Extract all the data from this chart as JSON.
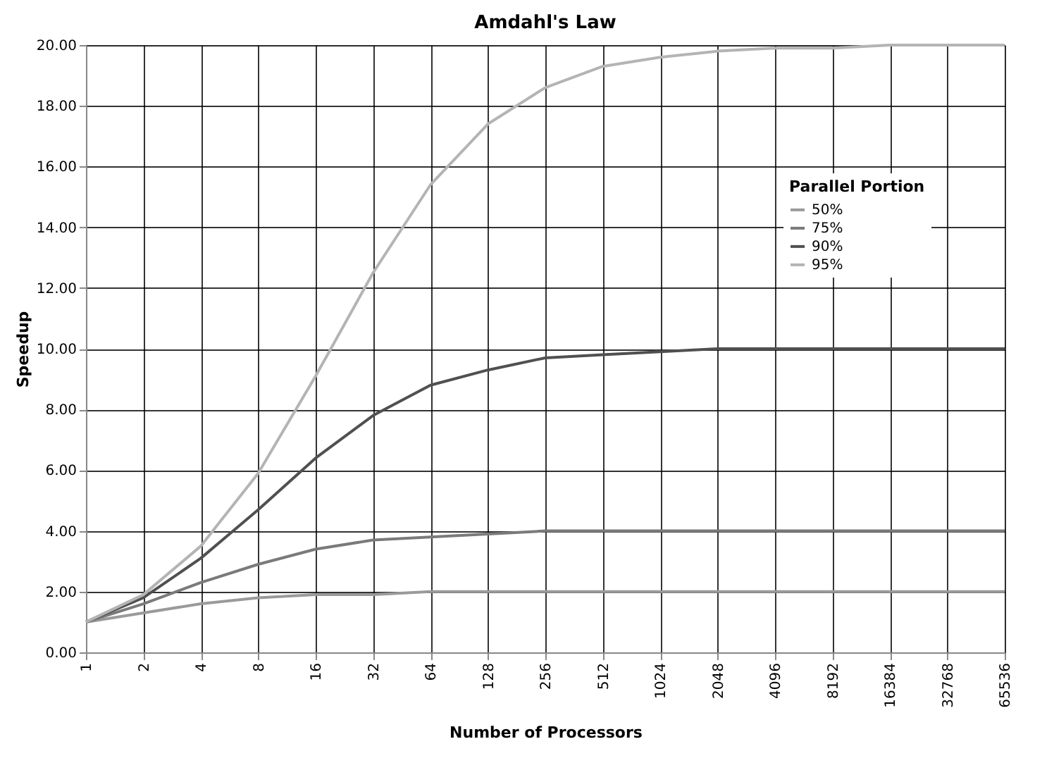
{
  "chart_data": {
    "type": "line",
    "title": "Amdahl's Law",
    "xlabel": "Number of Processors",
    "ylabel": "Speedup",
    "legend_title": "Parallel Portion",
    "categories": [
      "1",
      "2",
      "4",
      "8",
      "16",
      "32",
      "64",
      "128",
      "256",
      "512",
      "1024",
      "2048",
      "4096",
      "8192",
      "16384",
      "32768",
      "65536"
    ],
    "series": [
      {
        "name": "50%",
        "color": "#9a9a9a",
        "values": [
          1.0,
          1.3,
          1.6,
          1.8,
          1.9,
          1.9,
          2.0,
          2.0,
          2.0,
          2.0,
          2.0,
          2.0,
          2.0,
          2.0,
          2.0,
          2.0,
          2.0
        ]
      },
      {
        "name": "75%",
        "color": "#7a7a7a",
        "values": [
          1.0,
          1.6,
          2.3,
          2.9,
          3.4,
          3.7,
          3.8,
          3.9,
          4.0,
          4.0,
          4.0,
          4.0,
          4.0,
          4.0,
          4.0,
          4.0,
          4.0
        ]
      },
      {
        "name": "90%",
        "color": "#505050",
        "values": [
          1.0,
          1.8,
          3.1,
          4.7,
          6.4,
          7.8,
          8.8,
          9.3,
          9.7,
          9.8,
          9.9,
          10.0,
          10.0,
          10.0,
          10.0,
          10.0,
          10.0
        ]
      },
      {
        "name": "95%",
        "color": "#b4b4b4",
        "values": [
          1.0,
          1.9,
          3.5,
          5.9,
          9.1,
          12.5,
          15.4,
          17.4,
          18.6,
          19.3,
          19.6,
          19.8,
          19.9,
          19.9,
          20.0,
          20.0,
          20.0
        ]
      }
    ],
    "ylim": [
      0,
      20
    ],
    "yticks": [
      {
        "value": 0,
        "label": "0.00"
      },
      {
        "value": 2,
        "label": "2.00"
      },
      {
        "value": 4,
        "label": "4.00"
      },
      {
        "value": 6,
        "label": "6.00"
      },
      {
        "value": 8,
        "label": "8.00"
      },
      {
        "value": 10,
        "label": "10.00"
      },
      {
        "value": 12,
        "label": "12.00"
      },
      {
        "value": 14,
        "label": "14.00"
      },
      {
        "value": 16,
        "label": "16.00"
      },
      {
        "value": 18,
        "label": "18.00"
      },
      {
        "value": 20,
        "label": "20.00"
      }
    ],
    "grid": true,
    "legend": "top right",
    "marker": "none",
    "line_style": "solid"
  }
}
